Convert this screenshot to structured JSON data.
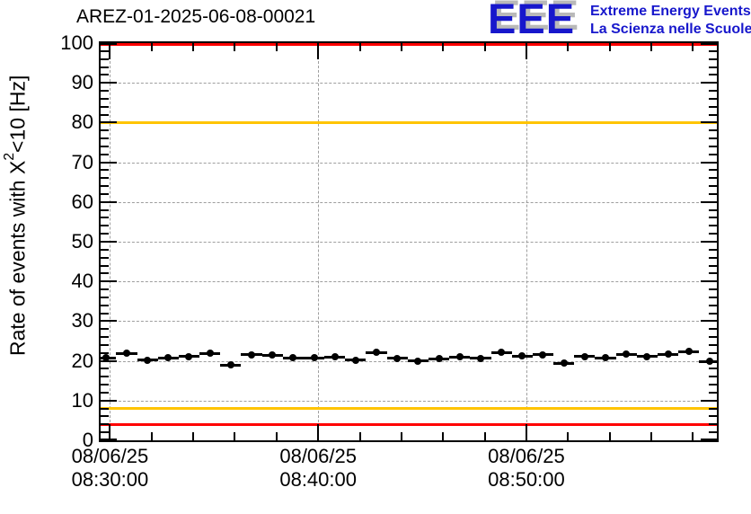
{
  "header": {
    "title": "AREZ-01-2025-06-08-00021",
    "logo": {
      "acronym": "EEE",
      "tagline_line1": "Extreme Energy Events",
      "tagline_line2": "La Scienza nelle Scuole",
      "color": "#1717cc",
      "shadow_color": "#b9b9b9"
    }
  },
  "chart_data": {
    "type": "scatter",
    "title": "AREZ-01-2025-06-08-00021",
    "ylabel": "Rate of events with X^2<10 [Hz]",
    "ylabel_parts": {
      "prefix": "Rate of events with X",
      "sup": "2",
      "suffix": "<10 [Hz]"
    },
    "xlabel": "",
    "ylim": [
      0,
      100
    ],
    "y_major_ticks": [
      0,
      10,
      20,
      30,
      40,
      50,
      60,
      70,
      80,
      90,
      100
    ],
    "y_minor_step": 2,
    "grid": "dashed",
    "legend": "none",
    "frame_color": "#000000",
    "gridline_color": "#9e9e9e",
    "x_axis": {
      "unit": "minutes after 08:30:00",
      "range_minutes": [
        -0.45,
        29.15
      ],
      "major_tick_minutes": [
        0,
        10,
        20
      ],
      "minor_step_minutes": 2,
      "tick_labels": [
        {
          "date": "08/06/25",
          "time": "08:30:00"
        },
        {
          "date": "08/06/25",
          "time": "08:40:00"
        },
        {
          "date": "08/06/25",
          "time": "08:50:00"
        }
      ]
    },
    "thresholds": [
      {
        "name": "alarm-high",
        "value": 100,
        "color": "#ff0000"
      },
      {
        "name": "warning-high",
        "value": 80,
        "color": "#ffc400"
      },
      {
        "name": "warning-low",
        "value": 8,
        "color": "#ffc400"
      },
      {
        "name": "alarm-low",
        "value": 4,
        "color": "#ff0000"
      }
    ],
    "marker": {
      "style": "filled-circle",
      "color": "#000000",
      "bin_halfwidth_minutes": 0.5
    },
    "points": {
      "t_min": [
        -0.2,
        0.8,
        1.8,
        2.8,
        3.8,
        4.8,
        5.8,
        6.8,
        7.8,
        8.8,
        9.8,
        10.8,
        11.8,
        12.8,
        13.8,
        14.8,
        15.8,
        16.8,
        17.8,
        18.8,
        19.8,
        20.8,
        21.8,
        22.8,
        23.8,
        24.8,
        25.8,
        26.8,
        27.8,
        28.8
      ],
      "rate_hz": [
        20.8,
        21.9,
        20.2,
        20.8,
        21.1,
        21.9,
        19.0,
        21.5,
        21.4,
        20.8,
        20.8,
        21.0,
        20.2,
        22.1,
        20.6,
        20.0,
        20.5,
        21.0,
        20.6,
        22.1,
        21.2,
        21.5,
        19.4,
        21.1,
        20.8,
        21.7,
        21.1,
        21.7,
        22.3,
        19.9
      ]
    }
  }
}
